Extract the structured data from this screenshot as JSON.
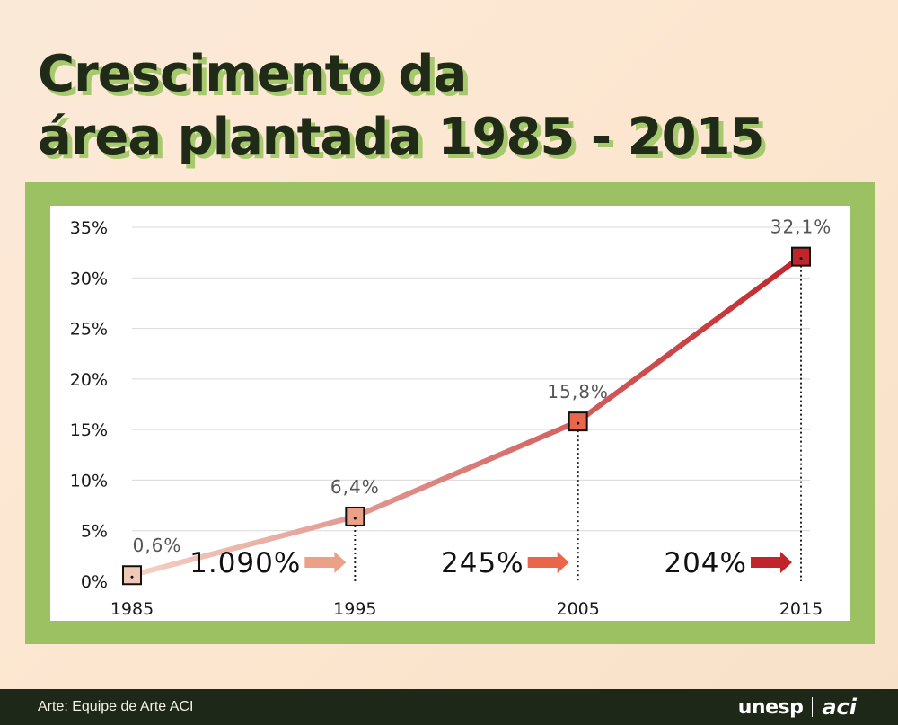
{
  "header": {
    "title_line1": "Crescimento da",
    "title_line2": "área plantada 1985 - 2015"
  },
  "chart_data": {
    "type": "line",
    "x": [
      "1985",
      "1995",
      "2005",
      "2015"
    ],
    "values": [
      0.6,
      6.4,
      15.8,
      32.1
    ],
    "value_labels": [
      "0,6%",
      "6,4%",
      "15,8%",
      "32,1%"
    ],
    "marker_colors": [
      "#f0c8b8",
      "#eba088",
      "#e8664a",
      "#c0252b"
    ],
    "line_gradient": [
      "#f4d2c4",
      "#c0252b"
    ],
    "ylim": [
      0,
      35
    ],
    "y_ticks": [
      0,
      5,
      10,
      15,
      20,
      25,
      30,
      35
    ],
    "y_tick_labels": [
      "0%",
      "5%",
      "10%",
      "15%",
      "20%",
      "25%",
      "30%",
      "35%"
    ],
    "grid": true,
    "growth_annotations": [
      {
        "label": "1.090%",
        "to": "1995",
        "color": "#eba088"
      },
      {
        "label": "245%",
        "to": "2005",
        "color": "#e8664a"
      },
      {
        "label": "204%",
        "to": "2015",
        "color": "#c0252b"
      }
    ],
    "xlabel": "",
    "ylabel": ""
  },
  "footer": {
    "credit": "Arte: Equipe de Arte ACI",
    "logo_unesp": "unesp",
    "logo_aci": "aci"
  }
}
